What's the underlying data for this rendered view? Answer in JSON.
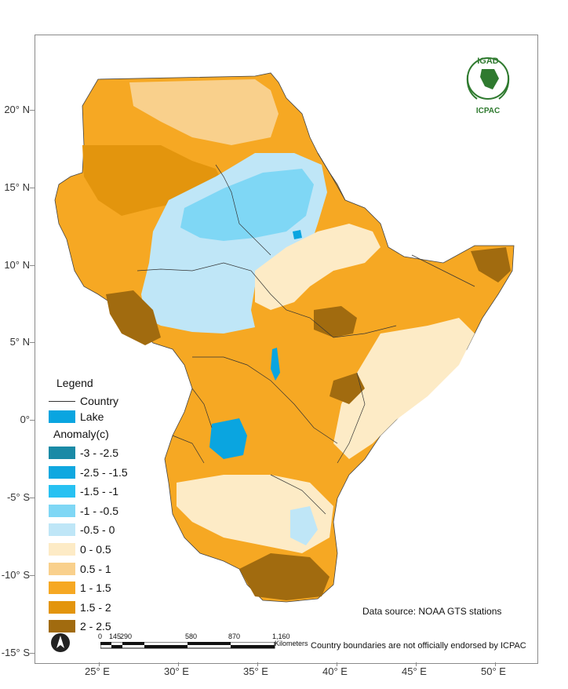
{
  "map": {
    "lat_labels": [
      "20° N",
      "15° N",
      "10° N",
      "5° N",
      "0°",
      "-5° S",
      "-10° S",
      "-15° S"
    ],
    "lon_labels": [
      "25° E",
      "30° E",
      "35° E",
      "40° E",
      "45° E",
      "50° E"
    ]
  },
  "legend": {
    "title": "Legend",
    "country_label": "Country",
    "lake_label": "Lake",
    "anomaly_title": "Anomaly(c)",
    "classes": [
      {
        "label": "-3 - -2.5",
        "color": "#1a8aa6"
      },
      {
        "label": "-2.5 - -1.5",
        "color": "#10a8e0"
      },
      {
        "label": "-1.5 - -1",
        "color": "#27c1f2"
      },
      {
        "label": "-1 - -0.5",
        "color": "#7fd7f5"
      },
      {
        "label": "-0.5 - 0",
        "color": "#bfe6f7"
      },
      {
        "label": "0 - 0.5",
        "color": "#fdebc6"
      },
      {
        "label": "0.5 - 1",
        "color": "#f9d08c"
      },
      {
        "label": "1 - 1.5",
        "color": "#f6a823"
      },
      {
        "label": "1.5 - 2",
        "color": "#e3950d"
      },
      {
        "label": "2 - 2.5",
        "color": "#a16b0f"
      }
    ],
    "lake_color": "#0aa5e0"
  },
  "source_text": "Data source: NOAA   GTS stations",
  "disclaimer": "Country boundaries are not officially endorsed by ICPAC",
  "scalebar": {
    "ticks": [
      "0",
      "145",
      "290",
      "580",
      "870",
      "1,160"
    ],
    "unit": "Kilometers"
  },
  "logo": {
    "org": "IGAD",
    "sub": "ICPAC"
  }
}
